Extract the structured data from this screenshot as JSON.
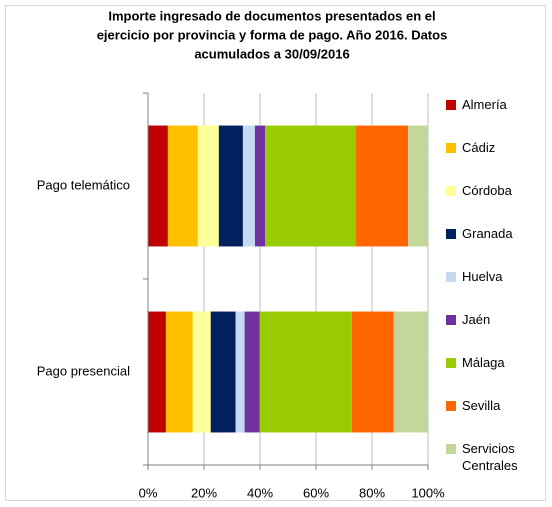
{
  "chart_data": {
    "type": "hbar_stacked",
    "title": [
      "Importe ingresado de documentos presentados en el",
      "ejercicio por provincia y forma de pago. Año 2016. Datos",
      "acumulados a 30/09/2016"
    ],
    "categories": [
      "Pago telemático",
      "Pago presencial"
    ],
    "series": [
      {
        "name": "Almería",
        "color": "#c00000",
        "values": [
          7.1,
          6.4
        ]
      },
      {
        "name": "Cádiz",
        "color": "#ffc000",
        "values": [
          10.7,
          9.6
        ]
      },
      {
        "name": "Córdoba",
        "color": "#ffff99",
        "values": [
          7.5,
          6.4
        ]
      },
      {
        "name": "Granada",
        "color": "#002060",
        "values": [
          8.6,
          8.9
        ]
      },
      {
        "name": "Huelva",
        "color": "#c5d9f1",
        "values": [
          4.3,
          3.2
        ]
      },
      {
        "name": "Jaén",
        "color": "#7030a0",
        "values": [
          3.6,
          5.4
        ]
      },
      {
        "name": "Málaga",
        "color": "#99cc00",
        "values": [
          32.5,
          32.9
        ]
      },
      {
        "name": "Sevilla",
        "color": "#ff6600",
        "values": [
          18.6,
          15.0
        ]
      },
      {
        "name": "Servicios Centrales",
        "color": "#c4d79b",
        "values": [
          7.1,
          12.2
        ]
      }
    ],
    "xlim": [
      0,
      100
    ],
    "xticks": [
      {
        "value": 0,
        "label": "0%"
      },
      {
        "value": 20,
        "label": "20%"
      },
      {
        "value": 40,
        "label": "40%"
      },
      {
        "value": 60,
        "label": "60%"
      },
      {
        "value": 80,
        "label": "80%"
      },
      {
        "value": 100,
        "label": "100%"
      }
    ],
    "grid": true
  }
}
